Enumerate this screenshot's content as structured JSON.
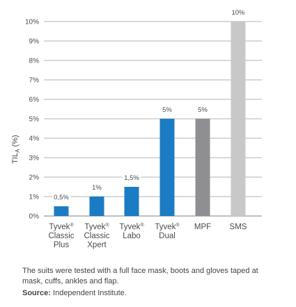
{
  "chart_data": {
    "type": "bar",
    "categories": [
      [
        "Tyvek®",
        "Classic",
        "Plus"
      ],
      [
        "Tyvek®",
        "Classic",
        "Xpert"
      ],
      [
        "Tyvek®",
        "Labo"
      ],
      [
        "Tyvek®",
        "Dual"
      ],
      [
        "MPF"
      ],
      [
        "SMS"
      ]
    ],
    "values": [
      0.5,
      1,
      1.5,
      5,
      5,
      10
    ],
    "value_labels": [
      "0,5%",
      "1%",
      "1,5%",
      "5%",
      "5%",
      "10%"
    ],
    "bar_colors": [
      "#1c7cc3",
      "#1c7cc3",
      "#1c7cc3",
      "#1c7cc3",
      "#8e8e93",
      "#c8c8c8"
    ],
    "ylabel": "TIL",
    "ylabel_sub": "A",
    "ylabel_unit": " (%)",
    "ylim": [
      0,
      10
    ],
    "yticks": [
      "0%",
      "1%",
      "2%",
      "3%",
      "4%",
      "5%",
      "6%",
      "7%",
      "8%",
      "9%",
      "10%"
    ],
    "grid": true,
    "gridline_color": "#9a9a9a"
  },
  "footnote": "The suits were tested with a full face mask, boots and gloves taped at mask, cuffs, ankles and flap.",
  "source_label": "Source:",
  "source_text": " Independent Institute."
}
